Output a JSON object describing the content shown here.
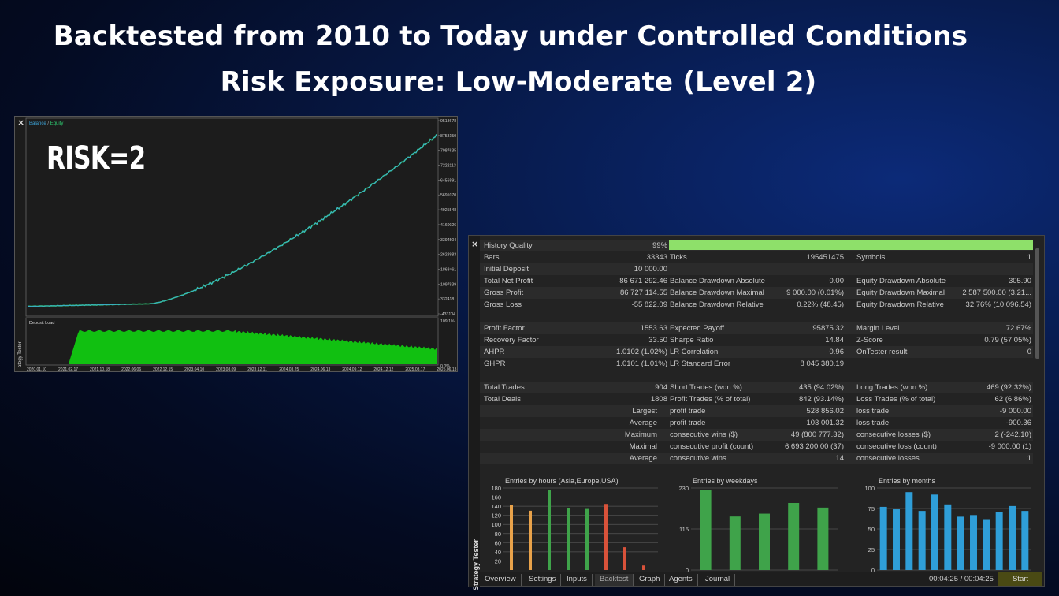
{
  "headline": {
    "line1": "Backtested from 2010 to Today under Controlled Conditions",
    "line2": "Risk Exposure: Low-Moderate (Level 2)"
  },
  "chart_window": {
    "close_glyph": "×",
    "overlay_text": "RISK=2",
    "legend_balance": "Balance",
    "legend_sep": " / ",
    "legend_equity": "Equity",
    "deposit_load_label": "Deposit Load",
    "side_label": "ategy Tester",
    "y_ticks": [
      "9518678",
      "8753150",
      "7987635",
      "7222113",
      "6456591",
      "5691070",
      "4925548",
      "4160026",
      "3394504",
      "2628983",
      "1863461",
      "1097939",
      "332418",
      "-433104"
    ],
    "load_ticks": [
      "109.1%",
      "0.0%"
    ],
    "x_ticks": [
      "2020.01.10",
      "2021.02.17",
      "2021.10.18",
      "2022.06.06",
      "2022.12.15",
      "2023.04.10",
      "2023.08.09",
      "2023.12.11",
      "2024.03.25",
      "2024.06.13",
      "2024.09.12",
      "2024.12.12",
      "2025.03.17",
      "2025.06.13"
    ],
    "colors": {
      "balance": "#3da5d9",
      "equity": "#2ecc71",
      "load": "#11c011"
    }
  },
  "report": {
    "close_glyph": "×",
    "side_label": "Strategy Tester",
    "history_quality": {
      "label": "History Quality",
      "value": "99%"
    },
    "rows": [
      [
        "Bars",
        "33343",
        "Ticks",
        "195451475",
        "Symbols",
        "1"
      ],
      [
        "Initial Deposit",
        "10 000.00",
        "",
        "",
        "",
        ""
      ],
      [
        "Total Net Profit",
        "86 671 292.46",
        "Balance Drawdown Absolute",
        "0.00",
        "Equity Drawdown Absolute",
        "305.90"
      ],
      [
        "Gross Profit",
        "86 727 114.55",
        "Balance Drawdown Maximal",
        "9 000.00 (0.01%)",
        "Equity Drawdown Maximal",
        "2 587 500.00 (3.21..."
      ],
      [
        "Gross Loss",
        "-55 822.09",
        "Balance Drawdown Relative",
        "0.22% (48.45)",
        "Equity Drawdown Relative",
        "32.76% (10 096.54)"
      ]
    ],
    "rows2": [
      [
        "Profit Factor",
        "1553.63",
        "Expected Payoff",
        "95875.32",
        "Margin Level",
        "72.67%"
      ],
      [
        "Recovery Factor",
        "33.50",
        "Sharpe Ratio",
        "14.84",
        "Z-Score",
        "0.79 (57.05%)"
      ],
      [
        "AHPR",
        "1.0102 (1.02%)",
        "LR Correlation",
        "0.96",
        "OnTester result",
        "0"
      ],
      [
        "GHPR",
        "1.0101 (1.01%)",
        "LR Standard Error",
        "8 045 380.19",
        "",
        ""
      ]
    ],
    "rows3": [
      [
        "Total Trades",
        "904",
        "Short Trades (won %)",
        "435 (94.02%)",
        "Long Trades (won %)",
        "469 (92.32%)"
      ],
      [
        "Total Deals",
        "1808",
        "Profit Trades (% of total)",
        "842 (93.14%)",
        "Loss Trades (% of total)",
        "62 (6.86%)"
      ]
    ],
    "rows4": [
      [
        "Largest",
        "profit trade",
        "528 856.02",
        "loss trade",
        "-9 000.00"
      ],
      [
        "Average",
        "profit trade",
        "103 001.32",
        "loss trade",
        "-900.36"
      ],
      [
        "Maximum",
        "consecutive wins ($)",
        "49 (800 777.32)",
        "consecutive losses ($)",
        "2 (-242.10)"
      ],
      [
        "Maximal",
        "consecutive profit (count)",
        "6 693 200.00 (37)",
        "consecutive loss (count)",
        "-9 000.00 (1)"
      ],
      [
        "Average",
        "consecutive wins",
        "14",
        "consecutive losses",
        "1"
      ]
    ],
    "mini_charts": [
      {
        "title": "Entries by hours (Asia,Europe,USA)",
        "y_ticks": [
          "180",
          "160",
          "140",
          "120",
          "100",
          "80",
          "60",
          "40",
          "20"
        ],
        "ymax": 180,
        "bars": [
          {
            "v": 143,
            "c": "#e8a24a"
          },
          {
            "v": 130,
            "c": "#e8a24a"
          },
          {
            "v": 175,
            "c": "#3fa34a"
          },
          {
            "v": 136,
            "c": "#3fa34a"
          },
          {
            "v": 134,
            "c": "#3fa34a"
          },
          {
            "v": 145,
            "c": "#d8523a"
          },
          {
            "v": 50,
            "c": "#d8523a"
          },
          {
            "v": 10,
            "c": "#d8523a"
          }
        ]
      },
      {
        "title": "Entries by weekdays",
        "y_ticks": [
          "230",
          "115",
          "0"
        ],
        "ymax": 230,
        "bars": [
          {
            "v": 225,
            "c": "#3fa34a"
          },
          {
            "v": 150,
            "c": "#3fa34a"
          },
          {
            "v": 158,
            "c": "#3fa34a"
          },
          {
            "v": 188,
            "c": "#3fa34a"
          },
          {
            "v": 175,
            "c": "#3fa34a"
          }
        ]
      },
      {
        "title": "Entries by months",
        "y_ticks": [
          "100",
          "75",
          "50",
          "25",
          "0"
        ],
        "ymax": 100,
        "bars": [
          {
            "v": 77,
            "c": "#2f9ed8"
          },
          {
            "v": 74,
            "c": "#2f9ed8"
          },
          {
            "v": 95,
            "c": "#2f9ed8"
          },
          {
            "v": 72,
            "c": "#2f9ed8"
          },
          {
            "v": 92,
            "c": "#2f9ed8"
          },
          {
            "v": 80,
            "c": "#2f9ed8"
          },
          {
            "v": 65,
            "c": "#2f9ed8"
          },
          {
            "v": 67,
            "c": "#2f9ed8"
          },
          {
            "v": 62,
            "c": "#2f9ed8"
          },
          {
            "v": 71,
            "c": "#2f9ed8"
          },
          {
            "v": 78,
            "c": "#2f9ed8"
          },
          {
            "v": 72,
            "c": "#2f9ed8"
          }
        ]
      }
    ],
    "tabs": [
      "Overview",
      "Settings",
      "Inputs",
      "Backtest",
      "Graph",
      "Agents",
      "Journal"
    ],
    "active_tab": "Backtest",
    "timer": "00:04:25 / 00:04:25",
    "start_label": "Start"
  }
}
